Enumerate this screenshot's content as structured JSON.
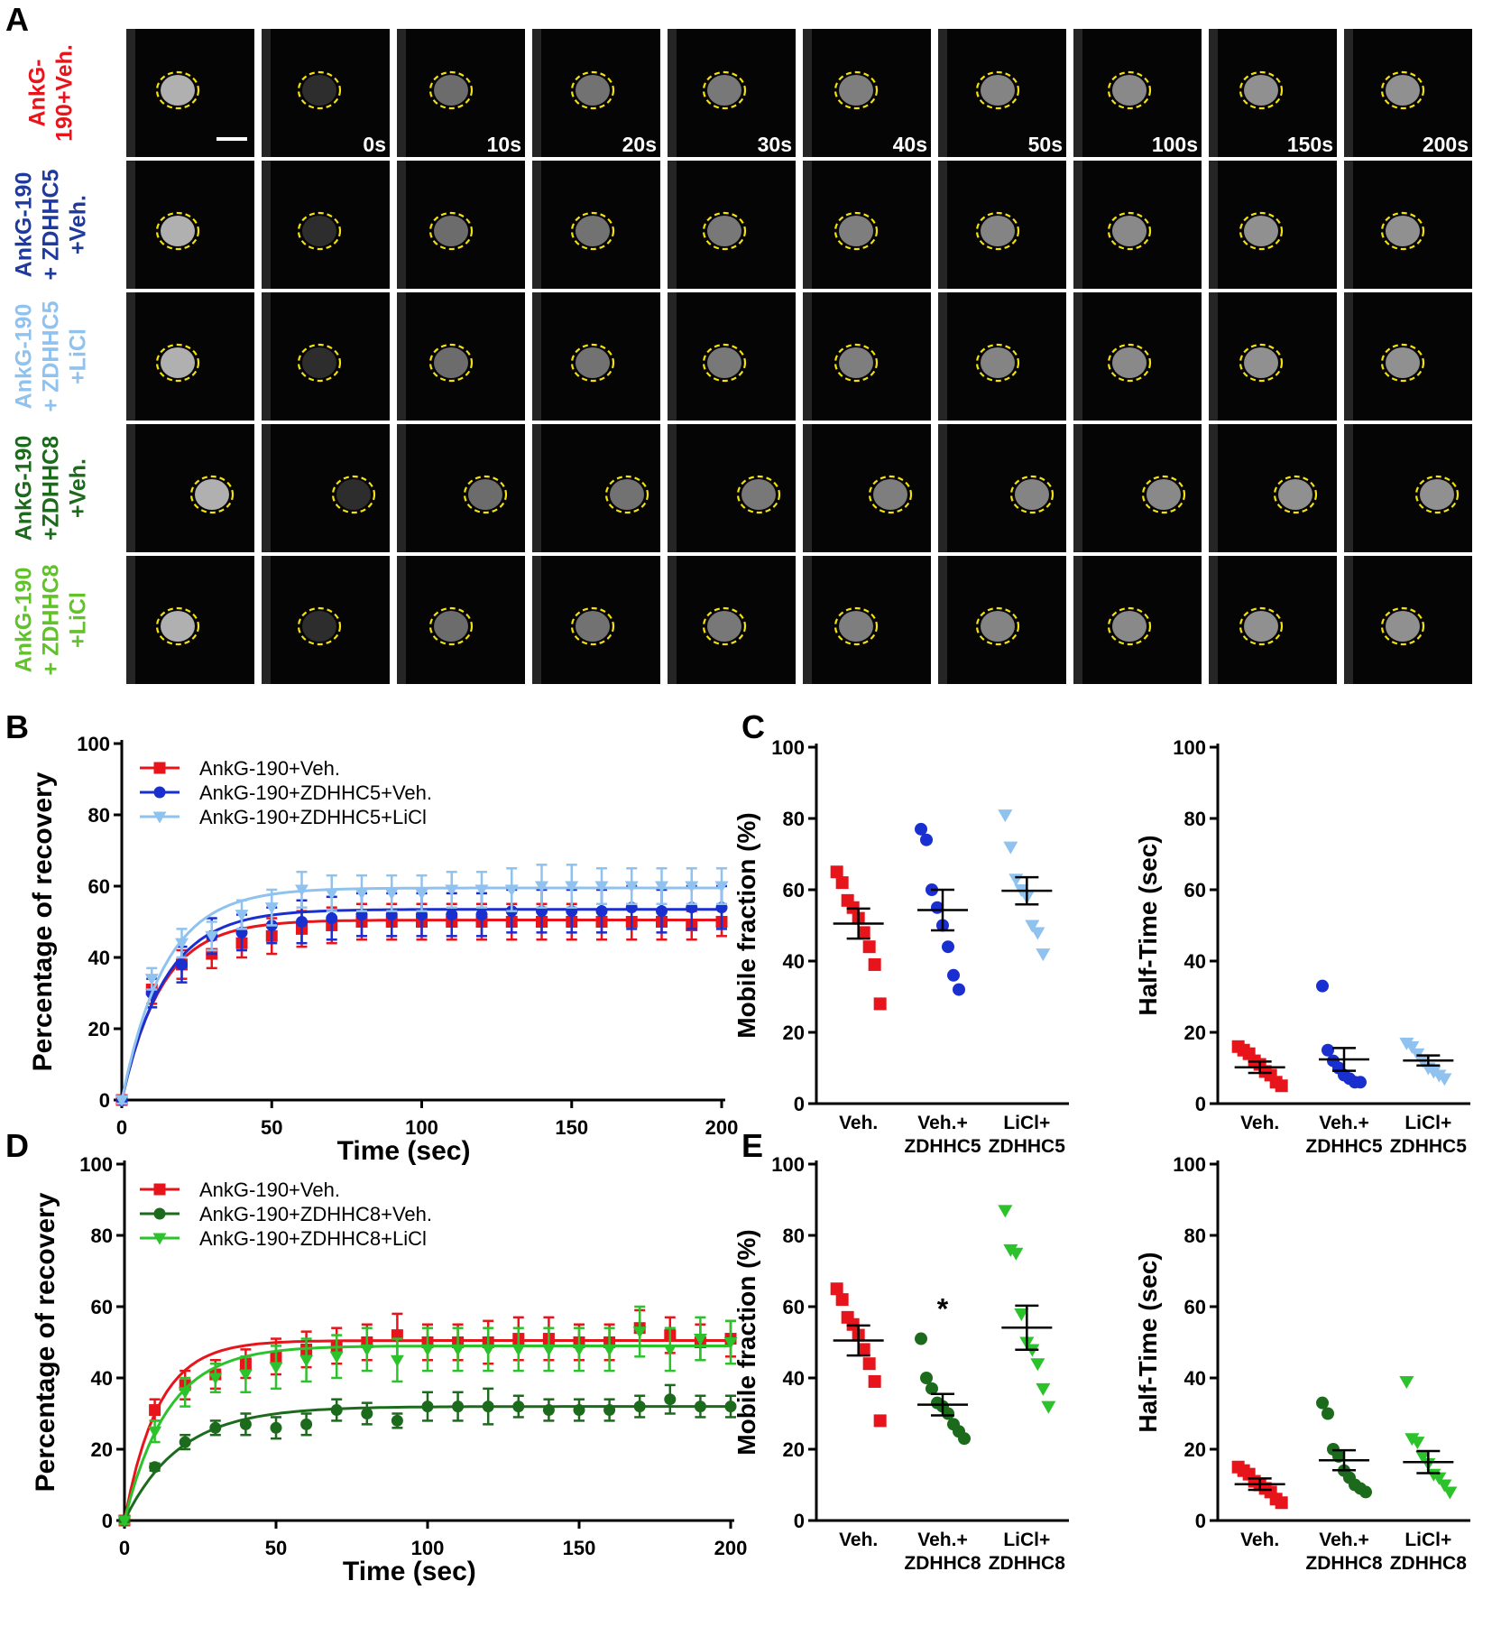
{
  "figure": {
    "panel_labels": {
      "a": "A",
      "b": "B",
      "c": "C",
      "d": "D",
      "e": "E"
    },
    "grid": {
      "time_labels": [
        "",
        "0s",
        "10s",
        "20s",
        "30s",
        "40s",
        "50s",
        "100s",
        "150s",
        "200s"
      ],
      "rows": [
        {
          "lines": [
            "AnkG-",
            "190+Veh."
          ],
          "color": "#e8141b"
        },
        {
          "lines": [
            "AnkG-190",
            "+ ZDHHC5",
            "+Veh."
          ],
          "color": "#1f3a9e"
        },
        {
          "lines": [
            "AnkG-190",
            "+ ZDHHC5",
            "+LiCl"
          ],
          "color": "#8fc2ee"
        },
        {
          "lines": [
            "AnkG-190",
            "+ZDHHC8",
            "+Veh."
          ],
          "color": "#1c6a1c"
        },
        {
          "lines": [
            "AnkG-190",
            "+ ZDHHC8",
            "+LiCl"
          ],
          "color": "#62c229"
        }
      ]
    }
  },
  "chart_data": [
    {
      "id": "B",
      "type": "line",
      "xlabel": "Time (sec)",
      "ylabel": "Percentage of recovery",
      "xlim": [
        0,
        200
      ],
      "ylim": [
        0,
        100
      ],
      "xticks": [
        "0",
        "50",
        "100",
        "150",
        "200"
      ],
      "yticks": [
        "0",
        "20",
        "40",
        "60",
        "80",
        "100"
      ],
      "x": [
        0,
        10,
        20,
        30,
        40,
        50,
        60,
        70,
        80,
        90,
        100,
        110,
        120,
        130,
        140,
        150,
        160,
        170,
        180,
        190,
        200
      ],
      "series": [
        {
          "name": "AnkG-190+Veh.",
          "color": "#e8141b",
          "marker": "square",
          "values": [
            0,
            31,
            38,
            41,
            44,
            46,
            48,
            49,
            50,
            50,
            50,
            50,
            50,
            50,
            50,
            50,
            50,
            50,
            50,
            49,
            50
          ],
          "error": [
            1,
            4,
            4,
            4,
            4,
            5,
            5,
            5,
            5,
            5,
            5,
            5,
            5,
            5,
            5,
            5,
            5,
            5,
            5,
            4,
            4
          ],
          "plateau": 50.5,
          "k": 0.075
        },
        {
          "name": "AnkG-190+ZDHHC5+Veh.",
          "color": "#1a2fd0",
          "marker": "circle",
          "values": [
            0,
            30,
            38,
            46,
            47,
            49,
            50,
            51,
            52,
            52,
            52,
            52,
            52,
            53,
            53,
            53,
            53,
            54,
            53,
            54,
            54
          ],
          "error": [
            1,
            4,
            5,
            5,
            5,
            5,
            6,
            6,
            6,
            6,
            6,
            6,
            6,
            6,
            6,
            6,
            6,
            6,
            6,
            6,
            6
          ],
          "plateau": 53.5,
          "k": 0.07
        },
        {
          "name": "AnkG-190+ZDHHC5+LiCl",
          "color": "#8fc2ee",
          "marker": "triangle",
          "values": [
            0,
            34,
            44,
            46,
            52,
            54,
            59,
            58,
            58,
            58,
            58,
            59,
            59,
            59,
            60,
            60,
            60,
            60,
            60,
            60,
            60
          ],
          "error": [
            1,
            3,
            4,
            4,
            4,
            5,
            5,
            5,
            5,
            5,
            5,
            5,
            5,
            6,
            6,
            6,
            5,
            5,
            5,
            5,
            5
          ],
          "plateau": 59.5,
          "k": 0.07
        }
      ]
    },
    {
      "id": "C1",
      "type": "scatter",
      "ylabel": "Mobile fraction (%)",
      "ylim": [
        0,
        100
      ],
      "yticks": [
        "0",
        "20",
        "40",
        "60",
        "80",
        "100"
      ],
      "categories": [
        [
          "Veh."
        ],
        [
          "Veh.+",
          "ZDHHC5"
        ],
        [
          "LiCl+",
          "ZDHHC5"
        ]
      ],
      "groups": [
        {
          "color": "#e8141b",
          "marker": "square",
          "points": [
            65,
            62,
            57,
            55,
            52,
            48,
            44,
            39,
            28
          ],
          "mean": 50.5,
          "sem": 4.2
        },
        {
          "color": "#1a2fd0",
          "marker": "circle",
          "points": [
            77,
            74,
            60,
            55,
            50,
            44,
            36,
            32
          ],
          "mean": 54.3,
          "sem": 5.7
        },
        {
          "color": "#8fc2ee",
          "marker": "triangle",
          "points": [
            81,
            72,
            63,
            60,
            58,
            50,
            48,
            42
          ],
          "mean": 59.7,
          "sem": 3.8
        }
      ],
      "annotation": ""
    },
    {
      "id": "C2",
      "type": "scatter",
      "ylabel": "Half-Time (sec)",
      "ylim": [
        0,
        100
      ],
      "yticks": [
        "0",
        "20",
        "40",
        "60",
        "80",
        "100"
      ],
      "categories": [
        [
          "Veh."
        ],
        [
          "Veh.+",
          "ZDHHC5"
        ],
        [
          "LiCl+",
          "ZDHHC5"
        ]
      ],
      "groups": [
        {
          "color": "#e8141b",
          "marker": "square",
          "points": [
            16,
            15,
            14,
            12,
            11,
            9,
            8,
            6,
            5
          ],
          "mean": 10.2,
          "sem": 1.6
        },
        {
          "color": "#1a2fd0",
          "marker": "circle",
          "points": [
            33,
            15,
            12,
            10,
            8,
            7,
            6,
            6
          ],
          "mean": 12.4,
          "sem": 3.2
        },
        {
          "color": "#8fc2ee",
          "marker": "triangle",
          "points": [
            17,
            16,
            14,
            12,
            10,
            9,
            8,
            7
          ],
          "mean": 12.1,
          "sem": 1.4
        }
      ],
      "annotation": ""
    },
    {
      "id": "D",
      "type": "line",
      "xlabel": "Time (sec)",
      "ylabel": "Percentage of recovery",
      "xlim": [
        0,
        200
      ],
      "ylim": [
        0,
        100
      ],
      "xticks": [
        "0",
        "50",
        "100",
        "150",
        "200"
      ],
      "yticks": [
        "0",
        "20",
        "40",
        "60",
        "80",
        "100"
      ],
      "x": [
        0,
        10,
        20,
        30,
        40,
        50,
        60,
        70,
        80,
        90,
        100,
        110,
        120,
        130,
        140,
        150,
        160,
        170,
        180,
        190,
        200
      ],
      "series": [
        {
          "name": "AnkG-190+Veh.",
          "color": "#e8141b",
          "marker": "square",
          "values": [
            0,
            31,
            38,
            41,
            44,
            46,
            48,
            49,
            50,
            52,
            50,
            50,
            50,
            51,
            51,
            50,
            50,
            54,
            52,
            50,
            51
          ],
          "error": [
            1,
            3,
            4,
            4,
            4,
            5,
            5,
            5,
            5,
            6,
            5,
            5,
            6,
            6,
            6,
            5,
            5,
            5,
            5,
            5,
            5
          ],
          "plateau": 50.5,
          "k": 0.09
        },
        {
          "name": "AnkG-190+ZDHHC8+Veh.",
          "color": "#1c6a1c",
          "marker": "circle",
          "values": [
            0,
            15,
            22,
            26,
            27,
            26,
            27,
            31,
            30,
            28,
            32,
            32,
            32,
            32,
            31,
            31,
            31,
            32,
            34,
            32,
            32
          ],
          "error": [
            0,
            1,
            2,
            2,
            3,
            3,
            3,
            3,
            3,
            2,
            4,
            4,
            5,
            3,
            3,
            3,
            3,
            3,
            4,
            3,
            3
          ],
          "plateau": 32,
          "k": 0.055
        },
        {
          "name": "AnkG-190+ZDHHC8+LiCl",
          "color": "#2cc22c",
          "marker": "triangle",
          "values": [
            0,
            25,
            36,
            40,
            41,
            43,
            45,
            46,
            48,
            45,
            48,
            48,
            48,
            48,
            48,
            48,
            48,
            53,
            48,
            51,
            50
          ],
          "error": [
            1,
            3,
            4,
            4,
            5,
            6,
            6,
            6,
            6,
            6,
            6,
            6,
            6,
            6,
            6,
            6,
            6,
            7,
            6,
            6,
            6
          ],
          "plateau": 49,
          "k": 0.07
        }
      ]
    },
    {
      "id": "E1",
      "type": "scatter",
      "ylabel": "Mobile fraction (%)",
      "ylim": [
        0,
        100
      ],
      "yticks": [
        "0",
        "20",
        "40",
        "60",
        "80",
        "100"
      ],
      "categories": [
        [
          "Veh."
        ],
        [
          "Veh.+",
          "ZDHHC8"
        ],
        [
          "LiCl+",
          "ZDHHC8"
        ]
      ],
      "groups": [
        {
          "color": "#e8141b",
          "marker": "square",
          "points": [
            65,
            62,
            57,
            55,
            52,
            48,
            44,
            39,
            28
          ],
          "mean": 50.5,
          "sem": 4.2
        },
        {
          "color": "#1c6a1c",
          "marker": "circle",
          "points": [
            51,
            40,
            37,
            33,
            32,
            30,
            27,
            25,
            23
          ],
          "mean": 32.5,
          "sem": 3.0
        },
        {
          "color": "#2cc22c",
          "marker": "triangle",
          "points": [
            87,
            76,
            75,
            58,
            50,
            48,
            44,
            37,
            32
          ],
          "mean": 54.1,
          "sem": 6.2
        }
      ],
      "annotation": "*"
    },
    {
      "id": "E2",
      "type": "scatter",
      "ylabel": "Half-Time (sec)",
      "ylim": [
        0,
        100
      ],
      "yticks": [
        "0",
        "20",
        "40",
        "60",
        "80",
        "100"
      ],
      "categories": [
        [
          "Veh."
        ],
        [
          "Veh.+",
          "ZDHHC8"
        ],
        [
          "LiCl+",
          "ZDHHC8"
        ]
      ],
      "groups": [
        {
          "color": "#e8141b",
          "marker": "square",
          "points": [
            15,
            14,
            13,
            11,
            10,
            9,
            8,
            6,
            5
          ],
          "mean": 10.2,
          "sem": 1.6
        },
        {
          "color": "#1c6a1c",
          "marker": "circle",
          "points": [
            33,
            30,
            20,
            18,
            14,
            12,
            10,
            9,
            8
          ],
          "mean": 16.9,
          "sem": 2.8
        },
        {
          "color": "#2cc22c",
          "marker": "triangle",
          "points": [
            39,
            23,
            22,
            18,
            16,
            13,
            12,
            10,
            8
          ],
          "mean": 16.4,
          "sem": 3.1
        }
      ],
      "annotation": ""
    }
  ]
}
